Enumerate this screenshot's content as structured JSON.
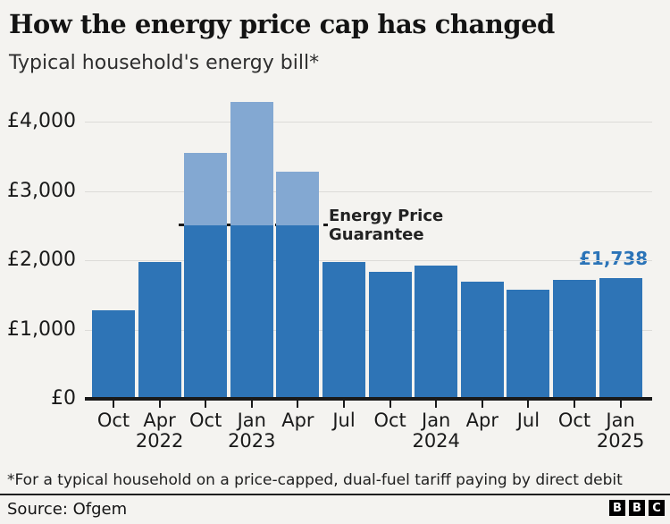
{
  "header": {
    "title": "How the energy price cap has changed",
    "subtitle": "Typical household's energy bill*"
  },
  "chart_data": {
    "type": "bar",
    "title": "How the energy price cap has changed",
    "subtitle": "Typical household's energy bill*",
    "currency": "£",
    "categories": [
      "Oct 2021",
      "Apr 2022",
      "Oct 2022",
      "Jan 2023",
      "Apr 2023",
      "Jul 2023",
      "Oct 2023",
      "Jan 2024",
      "Apr 2024",
      "Jul 2024",
      "Oct 2024",
      "Jan 2025"
    ],
    "tick_labels": [
      {
        "month": "Oct",
        "year": ""
      },
      {
        "month": "Apr",
        "year": "2022"
      },
      {
        "month": "Oct",
        "year": ""
      },
      {
        "month": "Jan",
        "year": "2023"
      },
      {
        "month": "Apr",
        "year": ""
      },
      {
        "month": "Jul",
        "year": ""
      },
      {
        "month": "Oct",
        "year": ""
      },
      {
        "month": "Jan",
        "year": "2024"
      },
      {
        "month": "Apr",
        "year": ""
      },
      {
        "month": "Jul",
        "year": ""
      },
      {
        "month": "Oct",
        "year": ""
      },
      {
        "month": "Jan",
        "year": "2025"
      }
    ],
    "values": [
      1277,
      1971,
      3549,
      4279,
      3280,
      1976,
      1834,
      1928,
      1690,
      1568,
      1717,
      1738
    ],
    "ylim": [
      0,
      4450
    ],
    "grid": true,
    "legend": "none",
    "yticks": [
      {
        "value": 0,
        "label": "£0"
      },
      {
        "value": 1000,
        "label": "£1,000"
      },
      {
        "value": 2000,
        "label": "£2,000"
      },
      {
        "value": 3000,
        "label": "£3,000"
      },
      {
        "value": 4000,
        "label": "£4,000"
      }
    ],
    "guarantee": {
      "value": 2500,
      "label_lines": [
        "Energy Price",
        "Guarantee"
      ]
    },
    "last_value_label": "£1,738"
  },
  "colors": {
    "background": "#f4f3f0",
    "bar": "#2e74b6",
    "bar_above_guarantee": "#83a8d2",
    "gridline": "#dcdbd8",
    "axis": "#1a1a1a",
    "accent_label": "#2b74b8"
  },
  "footer": {
    "footnote": "*For a typical household on a price-capped, dual-fuel tariff paying by direct debit",
    "source": "Source: Ofgem",
    "logo_letters": [
      "B",
      "B",
      "C"
    ]
  }
}
